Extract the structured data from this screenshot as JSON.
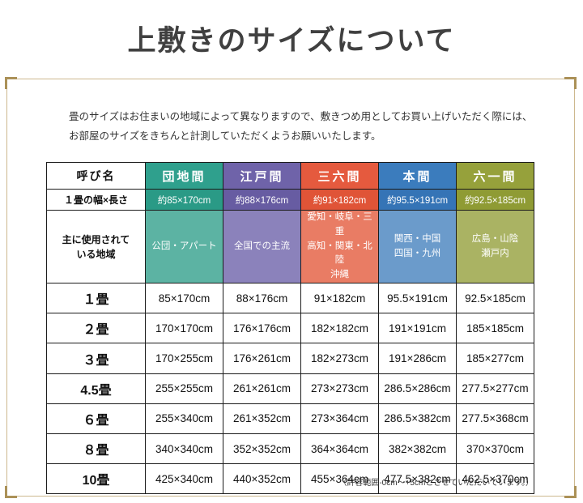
{
  "page": {
    "title": "上敷きのサイズについて",
    "intro_lines": [
      "畳のサイズはお住まいの地域によって異なりますので、敷きつめ用としてお買い上げいただく際には、",
      "お部屋のサイズをきちんと計測していただくようお願いいたします。"
    ],
    "footnote": "（許容範囲-0cm～+5cmとさせていただいています。）",
    "frame_border_color": "#cdb88e",
    "frame_corner_color": "#ab9157",
    "title_color": "#404040"
  },
  "chart_data": {
    "type": "table",
    "title": "上敷きのサイズについて",
    "corner_label": "呼び名",
    "row_labels": [
      "１畳の幅×長さ",
      "主に使用されて\nいる地域",
      "１畳",
      "２畳",
      "３畳",
      "4.5畳",
      "６畳",
      "８畳",
      "10畳"
    ],
    "columns": [
      {
        "name": "団地間",
        "header_bg": "#2fa08d",
        "size_bg": "#2a9a86",
        "region_bg": "#5cb3a3",
        "size": "約85×170cm",
        "region": "公団・アパート",
        "values": [
          "85×170cm",
          "170×170cm",
          "170×255cm",
          "255×255cm",
          "255×340cm",
          "340×340cm",
          "425×340cm"
        ]
      },
      {
        "name": "江戸間",
        "header_bg": "#6f63a9",
        "size_bg": "#675ca2",
        "region_bg": "#8b82bb",
        "size": "約88×176cm",
        "region": "全国での主流",
        "values": [
          "88×176cm",
          "176×176cm",
          "176×261cm",
          "261×261cm",
          "261×352cm",
          "352×352cm",
          "440×352cm"
        ]
      },
      {
        "name": "三六間",
        "header_bg": "#e55a3e",
        "size_bg": "#e05437",
        "region_bg": "#e97c64",
        "size": "約91×182cm",
        "region": "愛知・岐阜・三重\n高知・関東・北陸\n沖縄",
        "values": [
          "91×182cm",
          "182×182cm",
          "182×273cm",
          "273×273cm",
          "273×364cm",
          "364×364cm",
          "455×364cm"
        ]
      },
      {
        "name": "本間",
        "header_bg": "#3b7cbd",
        "size_bg": "#3574b6",
        "region_bg": "#6b9bcb",
        "size": "約95.5×191cm",
        "region": "関西・中国\n四国・九州",
        "values": [
          "95.5×191cm",
          "191×191cm",
          "191×286cm",
          "286.5×286cm",
          "286.5×382cm",
          "382×382cm",
          "477.5×382cm"
        ]
      },
      {
        "name": "六一間",
        "header_bg": "#96a13b",
        "size_bg": "#8f9b34",
        "region_bg": "#aab363",
        "size": "約92.5×185cm",
        "region": "広島・山陰\n瀬戸内",
        "values": [
          "92.5×185cm",
          "185×185cm",
          "185×277cm",
          "277.5×277cm",
          "277.5×368cm",
          "370×370cm",
          "462.5×370cm"
        ]
      }
    ]
  }
}
